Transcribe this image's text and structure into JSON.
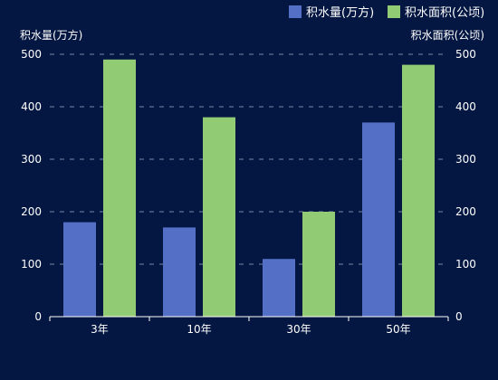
{
  "chart_data": {
    "type": "bar",
    "title": "",
    "categories": [
      "3年",
      "10年",
      "30年",
      "50年"
    ],
    "series": [
      {
        "name": "积水量(万方)",
        "color": "#5470c6",
        "axis": "left",
        "values": [
          180,
          170,
          110,
          370
        ]
      },
      {
        "name": "积水面积(公顷)",
        "color": "#91cc75",
        "axis": "right",
        "values": [
          490,
          380,
          200,
          480
        ]
      }
    ],
    "left_axis": {
      "label": "积水量(万方)",
      "ylim": [
        0,
        500
      ],
      "ticks": [
        0,
        100,
        200,
        300,
        400,
        500
      ]
    },
    "right_axis": {
      "label": "积水面积(公顷)",
      "ylim": [
        0,
        500
      ],
      "ticks": [
        0,
        100,
        200,
        300,
        400,
        500
      ]
    },
    "grid": true,
    "legend_position": "top-right",
    "colors": {
      "background": "#041742",
      "grid": "#8f9bb8",
      "axis": "#ffffff",
      "text": "#ffffff"
    }
  }
}
